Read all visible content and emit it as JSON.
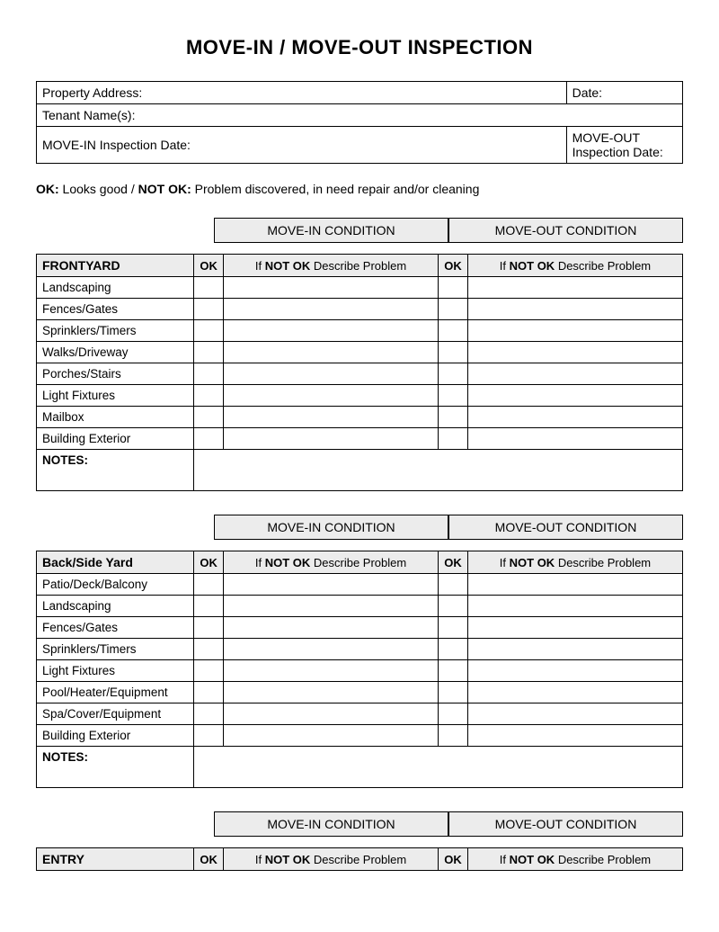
{
  "title": "MOVE-IN / MOVE-OUT INSPECTION",
  "info": {
    "propertyAddressLabel": "Property Address:",
    "dateLabel": "Date:",
    "tenantNamesLabel": "Tenant Name(s):",
    "moveInDateLabel": "MOVE-IN Inspection Date:",
    "moveOutDateLabel": "MOVE-OUT Inspection Date:"
  },
  "legend": {
    "okBold": "OK:",
    "okText": " Looks good / ",
    "notOkBold": "NOT OK:",
    "notOkText": " Problem discovered, in need repair and/or cleaning"
  },
  "headers": {
    "moveInCondition": "MOVE-IN CONDITION",
    "moveOutCondition": "MOVE-OUT CONDITION",
    "ok": "OK",
    "ifNotOkPrefix": "If ",
    "ifNotOkBold": "NOT OK",
    "ifNotOkSuffix": " Describe Problem",
    "notes": "NOTES:"
  },
  "sections": [
    {
      "name": "FRONTYARD",
      "items": [
        "Landscaping",
        "Fences/Gates",
        "Sprinklers/Timers",
        "Walks/Driveway",
        "Porches/Stairs",
        "Light Fixtures",
        "Mailbox",
        "Building Exterior"
      ]
    },
    {
      "name": "Back/Side Yard",
      "items": [
        "Patio/Deck/Balcony",
        "Landscaping",
        "Fences/Gates",
        "Sprinklers/Timers",
        "Light Fixtures",
        "Pool/Heater/Equipment",
        "Spa/Cover/Equipment",
        "Building Exterior"
      ]
    },
    {
      "name": "ENTRY",
      "items": []
    }
  ],
  "layout": {
    "background": "#ffffff",
    "headerBackground": "#ececec",
    "borderColor": "#000000",
    "columns": {
      "name_pct": 24,
      "ok_pct": 3.5,
      "desc_pct": 32.75
    }
  }
}
